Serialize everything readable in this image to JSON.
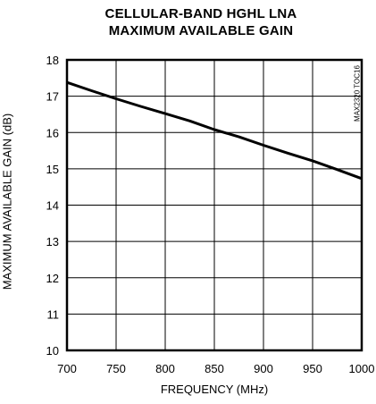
{
  "chart_data": {
    "type": "line",
    "title_line1": "CELLULAR-BAND HGHL LNA",
    "title_line2": "MAXIMUM AVAILABLE GAIN",
    "xlabel": "FREQUENCY (MHz)",
    "ylabel": "MAXIMUM AVAILABLE GAIN (dB)",
    "watermark": "MAX2320 TOC16",
    "xlim": [
      700,
      1000
    ],
    "ylim": [
      10,
      18
    ],
    "x_ticks": [
      700,
      750,
      800,
      850,
      900,
      950,
      1000
    ],
    "y_ticks": [
      10,
      11,
      12,
      13,
      14,
      15,
      16,
      17,
      18
    ],
    "grid": true,
    "line_color": "#000000",
    "series": [
      {
        "x": [
          700,
          725,
          750,
          775,
          800,
          825,
          850,
          875,
          900,
          925,
          950,
          975,
          1000
        ],
        "values": [
          17.38,
          17.15,
          16.93,
          16.72,
          16.52,
          16.32,
          16.08,
          15.88,
          15.65,
          15.43,
          15.22,
          14.98,
          14.73
        ]
      }
    ]
  }
}
